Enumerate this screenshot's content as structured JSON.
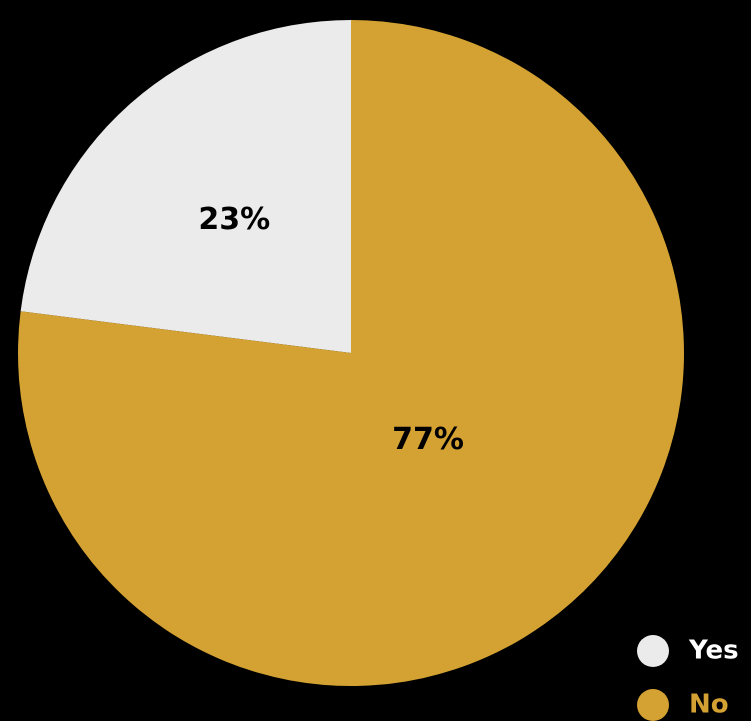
{
  "chart_data": {
    "type": "pie",
    "title": "",
    "categories": [
      "Yes",
      "No"
    ],
    "values": [
      23,
      77
    ],
    "labels": [
      "23%",
      "77%"
    ],
    "colors": [
      "#ebebeb",
      "#d4a232"
    ],
    "legend_text_colors": [
      "#ffffff",
      "#d4a232"
    ],
    "background": "#000000",
    "start_angle_deg": 0,
    "direction": "counterclockwise",
    "legend_position": "bottom-right"
  }
}
